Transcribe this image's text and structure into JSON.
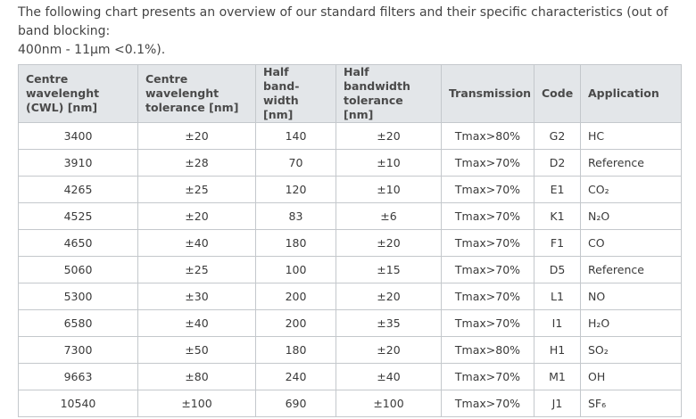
{
  "intro": {
    "line1": "The following chart presents an overview of our standard filters and their specific characteristics (out of band blocking:",
    "line2": "400nm - 11µm <0.1%)."
  },
  "table": {
    "headers": [
      "Centre wavelenght\n(CWL) [nm]",
      "Centre wavelenght\ntolerance [nm]",
      "Half band-\nwidth [nm]",
      "Half bandwidth\ntolerance [nm]",
      "Transmission",
      "Code",
      "Application"
    ],
    "rows": [
      [
        "3400",
        "±20",
        "140",
        "±20",
        "Tmax>80%",
        "G2",
        "HC"
      ],
      [
        "3910",
        "±28",
        "70",
        "±10",
        "Tmax>70%",
        "D2",
        "Reference"
      ],
      [
        "4265",
        "±25",
        "120",
        "±10",
        "Tmax>70%",
        "E1",
        "CO₂"
      ],
      [
        "4525",
        "±20",
        "83",
        "±6",
        "Tmax>70%",
        "K1",
        "N₂O"
      ],
      [
        "4650",
        "±40",
        "180",
        "±20",
        "Tmax>70%",
        "F1",
        "CO"
      ],
      [
        "5060",
        "±25",
        "100",
        "±15",
        "Tmax>70%",
        "D5",
        "Reference"
      ],
      [
        "5300",
        "±30",
        "200",
        "±20",
        "Tmax>70%",
        "L1",
        "NO"
      ],
      [
        "6580",
        "±40",
        "200",
        "±35",
        "Tmax>70%",
        "I1",
        "H₂O"
      ],
      [
        "7300",
        "±50",
        "180",
        "±20",
        "Tmax>80%",
        "H1",
        "SO₂"
      ],
      [
        "9663",
        "±80",
        "240",
        "±40",
        "Tmax>70%",
        "M1",
        "OH"
      ],
      [
        "10540",
        "±100",
        "690",
        "±100",
        "Tmax>70%",
        "J1",
        "SF₆"
      ]
    ]
  }
}
